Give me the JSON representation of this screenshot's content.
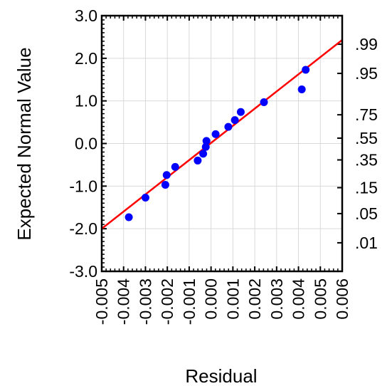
{
  "chart_data": {
    "type": "scatter",
    "title": "",
    "xlabel": "Residual",
    "ylabel": "Expected Normal Value",
    "xlim": [
      -0.005,
      0.006
    ],
    "ylim": [
      -3.0,
      3.0
    ],
    "x_ticks": [
      "-0.005",
      "-0.004",
      "-0.003",
      "-0.002",
      "-0.001",
      "0.000",
      "0.001",
      "0.002",
      "0.003",
      "0.004",
      "0.005",
      "0.006"
    ],
    "y_ticks": [
      "-3.0",
      "-2.0",
      "-1.0",
      "0.0",
      "1.0",
      "2.0",
      "3.0"
    ],
    "y2_ticks": [
      {
        "label": ".99",
        "z": 2.33
      },
      {
        "label": ".95",
        "z": 1.645
      },
      {
        "label": ".75",
        "z": 0.674
      },
      {
        "label": ".55",
        "z": 0.126
      },
      {
        "label": ".35",
        "z": -0.385
      },
      {
        "label": ".15",
        "z": -1.036
      },
      {
        "label": ".05",
        "z": -1.645
      },
      {
        "label": ".01",
        "z": -2.33
      }
    ],
    "grid": true,
    "points": [
      {
        "x": -0.00376,
        "y": -1.73
      },
      {
        "x": -0.003,
        "y": -1.27
      },
      {
        "x": -0.00209,
        "y": -0.97
      },
      {
        "x": -0.00203,
        "y": -0.74
      },
      {
        "x": -0.00164,
        "y": -0.55
      },
      {
        "x": -0.00061,
        "y": -0.4
      },
      {
        "x": -0.00036,
        "y": -0.24
      },
      {
        "x": -0.00024,
        "y": -0.08
      },
      {
        "x": -0.00021,
        "y": 0.06
      },
      {
        "x": 0.00021,
        "y": 0.22
      },
      {
        "x": 0.00079,
        "y": 0.39
      },
      {
        "x": 0.00109,
        "y": 0.55
      },
      {
        "x": 0.00136,
        "y": 0.74
      },
      {
        "x": 0.00242,
        "y": 0.97
      },
      {
        "x": 0.00415,
        "y": 1.27
      },
      {
        "x": 0.00433,
        "y": 1.73
      }
    ],
    "fit_line": {
      "x": [
        -0.005,
        0.006
      ],
      "y": [
        -2.0,
        2.43
      ]
    },
    "point_color": "#0000ff",
    "line_color": "#ff0000"
  }
}
